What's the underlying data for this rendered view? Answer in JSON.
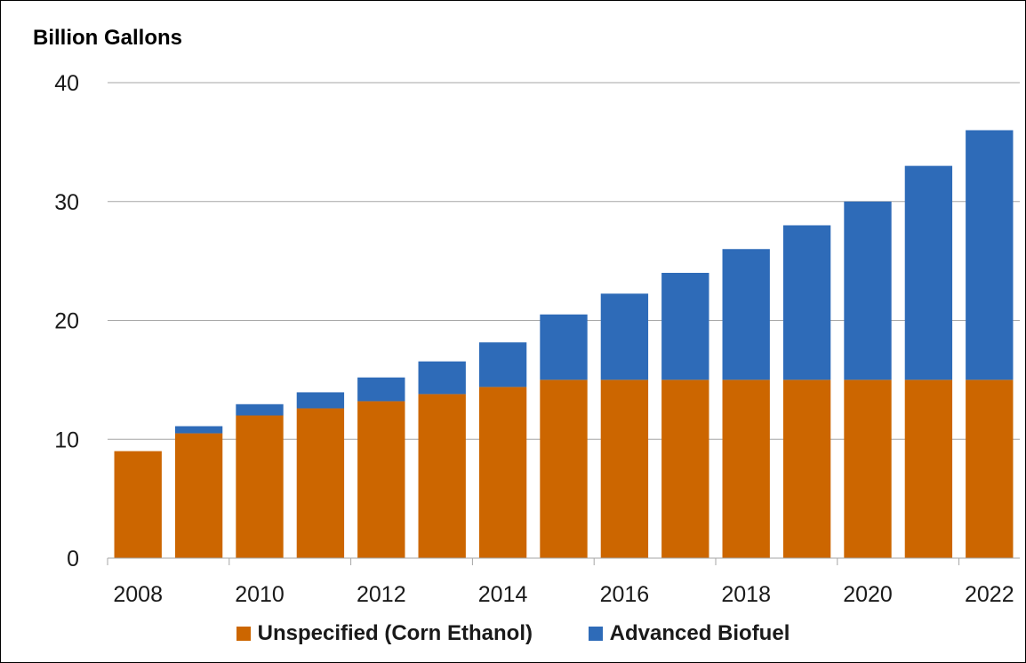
{
  "chart_data": {
    "type": "bar",
    "stacked": true,
    "title": "",
    "ylabel": "Billion Gallons",
    "xlabel": "",
    "ylim": [
      0,
      40
    ],
    "yticks": [
      0,
      10,
      20,
      30,
      40
    ],
    "grid": true,
    "legend_position": "bottom",
    "categories": [
      "2008",
      "2009",
      "2010",
      "2011",
      "2012",
      "2013",
      "2014",
      "2015",
      "2016",
      "2017",
      "2018",
      "2019",
      "2020",
      "2021",
      "2022"
    ],
    "xtick_labels": [
      "2008",
      "2010",
      "2012",
      "2014",
      "2016",
      "2018",
      "2020",
      "2022"
    ],
    "series": [
      {
        "name": "Unspecified (Corn Ethanol)",
        "color": "#cc6600",
        "values": [
          9.0,
          10.5,
          12.0,
          12.6,
          13.2,
          13.8,
          14.4,
          15.0,
          15.0,
          15.0,
          15.0,
          15.0,
          15.0,
          15.0,
          15.0
        ]
      },
      {
        "name": "Advanced Biofuel",
        "color": "#2e6bb8",
        "values": [
          0.0,
          0.6,
          0.95,
          1.35,
          2.0,
          2.75,
          3.75,
          5.5,
          7.25,
          9.0,
          11.0,
          13.0,
          15.0,
          18.0,
          21.0
        ]
      }
    ]
  }
}
